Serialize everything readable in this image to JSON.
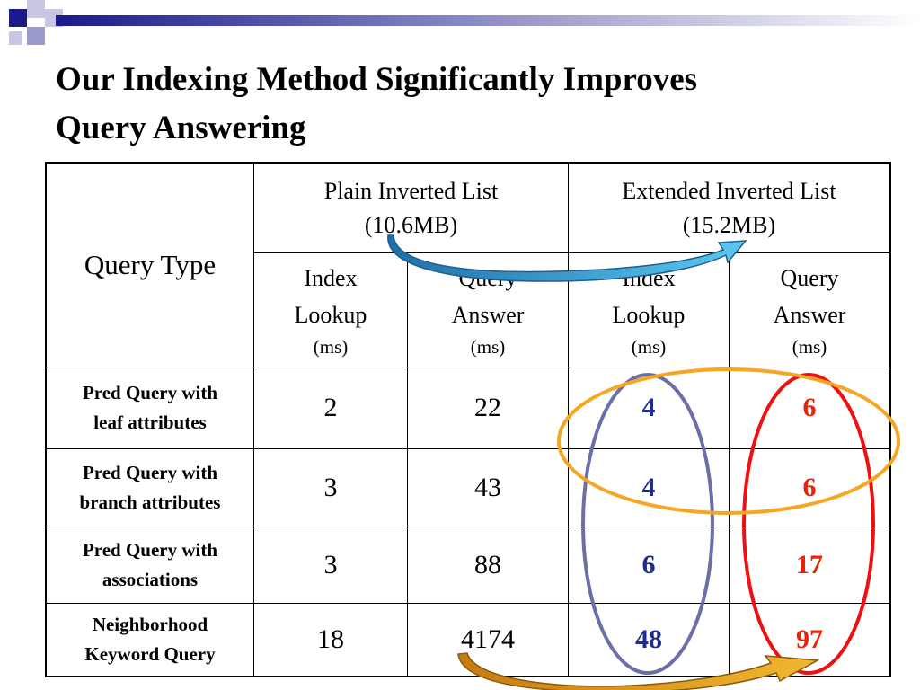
{
  "slide": {
    "title_line1": "Our Indexing Method Significantly Improves",
    "title_line2": "Query Answering"
  },
  "table": {
    "query_type_header": "Query Type",
    "plain_header_line1": "Plain Inverted List",
    "plain_header_line2": "(10.6MB)",
    "extended_header_line1": "Extended Inverted List",
    "extended_header_line2": "(15.2MB)",
    "sub_headers": [
      {
        "line1": "Index",
        "line2": "Lookup",
        "unit": "(ms)"
      },
      {
        "line1": "Query",
        "line2": "Answer",
        "unit": "(ms)"
      },
      {
        "line1": "Index",
        "line2": "Lookup",
        "unit": "(ms)"
      },
      {
        "line1": "Query",
        "line2": "Answer",
        "unit": "(ms)"
      }
    ],
    "rows": [
      {
        "label_line1": "Pred Query with",
        "label_line2": "leaf  attributes",
        "values": [
          "2",
          "22",
          "4",
          "6"
        ]
      },
      {
        "label_line1": "Pred Query with",
        "label_line2": "branch attributes",
        "values": [
          "3",
          "43",
          "4",
          "6"
        ]
      },
      {
        "label_line1": "Pred Query with",
        "label_line2": "associations",
        "values": [
          "3",
          "88",
          "6",
          "17"
        ]
      },
      {
        "label_line1": "Neighborhood",
        "label_line2": "Keyword Query",
        "values": [
          "18",
          "4174",
          "48",
          "97"
        ]
      }
    ]
  },
  "colors": {
    "extended_lookup_values": "#1f2d8a",
    "extended_answer_values": "#ee2200",
    "lookup_ellipse": "#6b6ea8",
    "answer_ellipse": "#ee1111",
    "row_ellipse": "#f5a623",
    "top_arrow": "#3aa8d8",
    "bottom_arrow": "#e0a020",
    "corner_squares": [
      "#1a1a8c",
      "#9a9acc",
      "#c8c8e4"
    ]
  }
}
